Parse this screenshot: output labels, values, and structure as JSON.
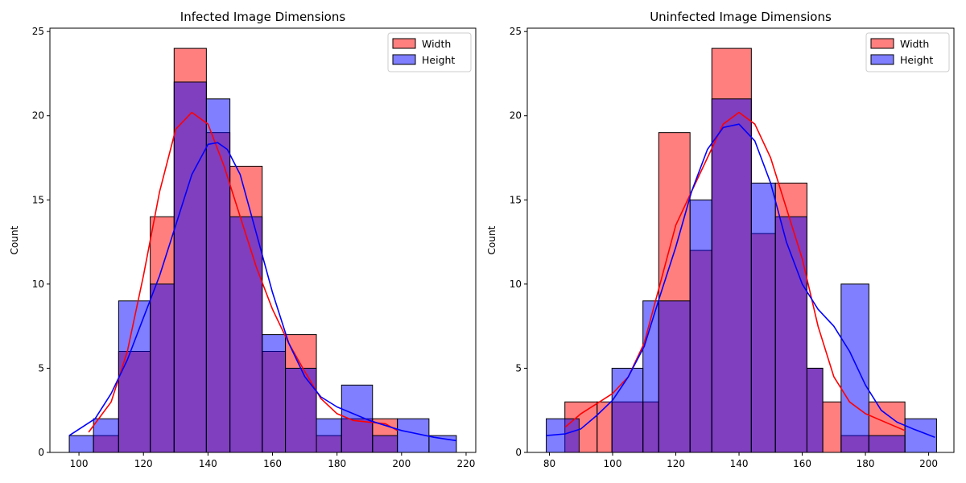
{
  "chart_data": [
    {
      "type": "histogram",
      "title": "Infected Image Dimensions",
      "xlabel": "",
      "ylabel": "Count",
      "xlim": [
        91,
        223
      ],
      "ylim": [
        0,
        25.2
      ],
      "xticks": [
        100,
        120,
        140,
        160,
        180,
        200,
        220
      ],
      "yticks": [
        0,
        5,
        10,
        15,
        20,
        25
      ],
      "legend_position": "top-right",
      "kde": true,
      "series": [
        {
          "name": "Width",
          "color": "#ff0000",
          "bins": [
            {
              "x0": 104.5,
              "x1": 112.3,
              "count": 1
            },
            {
              "x0": 112.3,
              "x1": 122.1,
              "count": 6
            },
            {
              "x0": 122.1,
              "x1": 129.5,
              "count": 14
            },
            {
              "x0": 129.5,
              "x1": 139.5,
              "count": 24
            },
            {
              "x0": 139.5,
              "x1": 146.8,
              "count": 19
            },
            {
              "x0": 146.8,
              "x1": 156.8,
              "count": 17
            },
            {
              "x0": 156.8,
              "x1": 164.0,
              "count": 6
            },
            {
              "x0": 164.0,
              "x1": 173.6,
              "count": 7
            },
            {
              "x0": 173.6,
              "x1": 181.4,
              "count": 1
            },
            {
              "x0": 181.4,
              "x1": 191.0,
              "count": 2
            },
            {
              "x0": 191.0,
              "x1": 198.7,
              "count": 2
            }
          ],
          "kde": {
            "x": [
              103,
              110,
              115,
              120,
              125,
              130,
              135,
              140,
              145,
              150,
              155,
              160,
              165,
              170,
              175,
              180,
              185,
              190,
              195,
              198.7
            ],
            "y": [
              1.2,
              3.0,
              6.0,
              10.5,
              15.5,
              19.2,
              20.2,
              19.5,
              17.0,
              14.0,
              11.0,
              8.5,
              6.5,
              4.8,
              3.2,
              2.3,
              1.9,
              1.8,
              1.7,
              1.3
            ]
          }
        },
        {
          "name": "Height",
          "color": "#0000ff",
          "bins": [
            {
              "x0": 97.0,
              "x1": 104.5,
              "count": 1
            },
            {
              "x0": 104.5,
              "x1": 112.3,
              "count": 2
            },
            {
              "x0": 112.3,
              "x1": 122.1,
              "count": 9
            },
            {
              "x0": 122.1,
              "x1": 129.5,
              "count": 10
            },
            {
              "x0": 129.5,
              "x1": 139.5,
              "count": 22
            },
            {
              "x0": 139.5,
              "x1": 146.8,
              "count": 21
            },
            {
              "x0": 146.8,
              "x1": 156.8,
              "count": 14
            },
            {
              "x0": 156.8,
              "x1": 164.0,
              "count": 7
            },
            {
              "x0": 164.0,
              "x1": 173.6,
              "count": 5
            },
            {
              "x0": 173.6,
              "x1": 181.4,
              "count": 2
            },
            {
              "x0": 181.4,
              "x1": 191.0,
              "count": 4
            },
            {
              "x0": 191.0,
              "x1": 198.7,
              "count": 1
            },
            {
              "x0": 198.7,
              "x1": 208.5,
              "count": 2
            },
            {
              "x0": 208.5,
              "x1": 217.0,
              "count": 1
            }
          ],
          "kde": {
            "x": [
              97,
              105,
              110,
              115,
              120,
              125,
              130,
              135,
              140,
              143,
              146,
              150,
              155,
              160,
              165,
              170,
              175,
              180,
              190,
              200,
              210,
              217
            ],
            "y": [
              1.0,
              2.0,
              3.5,
              5.5,
              8.0,
              10.5,
              13.5,
              16.5,
              18.3,
              18.4,
              18.0,
              16.5,
              13.0,
              9.5,
              6.5,
              4.5,
              3.3,
              2.7,
              1.9,
              1.3,
              0.9,
              0.7
            ]
          }
        }
      ]
    },
    {
      "type": "histogram",
      "title": "Uninfected Image Dimensions",
      "xlabel": "",
      "ylabel": "Count",
      "xlim": [
        73,
        208
      ],
      "ylim": [
        0,
        25.2
      ],
      "xticks": [
        80,
        100,
        120,
        140,
        160,
        180,
        200
      ],
      "yticks": [
        0,
        5,
        10,
        15,
        20,
        25
      ],
      "legend_position": "top-right",
      "kde": true,
      "series": [
        {
          "name": "Width",
          "color": "#ff0000",
          "bins": [
            {
              "x0": 84.9,
              "x1": 95.1,
              "count": 3
            },
            {
              "x0": 95.1,
              "x1": 99.8,
              "count": 3
            },
            {
              "x0": 99.8,
              "x1": 109.6,
              "count": 3
            },
            {
              "x0": 109.6,
              "x1": 114.6,
              "count": 3
            },
            {
              "x0": 114.6,
              "x1": 124.5,
              "count": 19
            },
            {
              "x0": 124.5,
              "x1": 131.4,
              "count": 12
            },
            {
              "x0": 131.4,
              "x1": 143.9,
              "count": 24
            },
            {
              "x0": 143.9,
              "x1": 151.5,
              "count": 13
            },
            {
              "x0": 151.5,
              "x1": 161.5,
              "count": 16
            },
            {
              "x0": 161.5,
              "x1": 166.5,
              "count": 5
            },
            {
              "x0": 166.5,
              "x1": 172.3,
              "count": 3
            },
            {
              "x0": 172.3,
              "x1": 181.1,
              "count": 1
            },
            {
              "x0": 181.1,
              "x1": 192.5,
              "count": 3
            }
          ],
          "kde": {
            "x": [
              85,
              90,
              95,
              100,
              105,
              110,
              115,
              120,
              125,
              130,
              135,
              140,
              145,
              150,
              155,
              160,
              165,
              170,
              175,
              180,
              185,
              192.5
            ],
            "y": [
              1.5,
              2.3,
              2.9,
              3.5,
              4.5,
              6.5,
              10.0,
              13.5,
              15.5,
              17.5,
              19.5,
              20.2,
              19.5,
              17.5,
              14.5,
              11.5,
              7.5,
              4.5,
              3.0,
              2.3,
              1.9,
              1.3
            ]
          }
        },
        {
          "name": "Height",
          "color": "#0000ff",
          "bins": [
            {
              "x0": 79.0,
              "x1": 89.4,
              "count": 2
            },
            {
              "x0": 99.8,
              "x1": 109.6,
              "count": 5
            },
            {
              "x0": 109.6,
              "x1": 114.6,
              "count": 9
            },
            {
              "x0": 114.6,
              "x1": 124.5,
              "count": 9
            },
            {
              "x0": 124.5,
              "x1": 131.4,
              "count": 15
            },
            {
              "x0": 131.4,
              "x1": 143.9,
              "count": 21
            },
            {
              "x0": 143.9,
              "x1": 151.5,
              "count": 16
            },
            {
              "x0": 151.5,
              "x1": 161.5,
              "count": 14
            },
            {
              "x0": 161.5,
              "x1": 166.5,
              "count": 5
            },
            {
              "x0": 172.3,
              "x1": 181.1,
              "count": 10
            },
            {
              "x0": 181.1,
              "x1": 192.5,
              "count": 1
            },
            {
              "x0": 192.5,
              "x1": 202.5,
              "count": 2
            }
          ],
          "kde": {
            "x": [
              79,
              85,
              90,
              95,
              100,
              105,
              110,
              115,
              120,
              125,
              130,
              135,
              140,
              145,
              150,
              155,
              160,
              165,
              170,
              175,
              180,
              185,
              190,
              195,
              202
            ],
            "y": [
              1.0,
              1.1,
              1.4,
              2.2,
              3.1,
              4.5,
              6.3,
              9.3,
              12.2,
              15.5,
              18.0,
              19.3,
              19.5,
              18.5,
              16.0,
              12.5,
              10.0,
              8.5,
              7.5,
              6.0,
              4.0,
              2.5,
              1.8,
              1.4,
              0.9
            ]
          }
        }
      ]
    }
  ]
}
